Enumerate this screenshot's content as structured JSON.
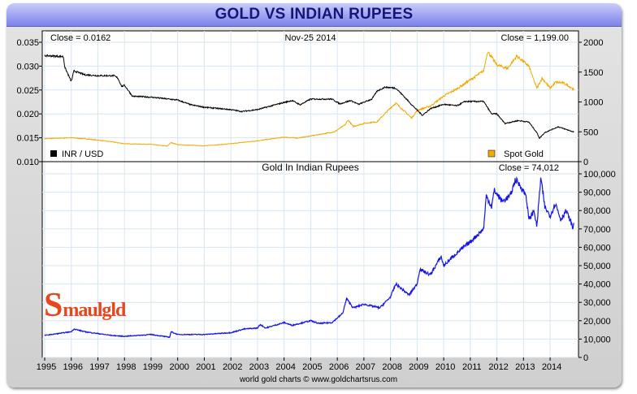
{
  "title": "GOLD VS INDIAN RUPEES",
  "footer": "world gold charts © www.goldchartsrus.com",
  "logo": {
    "first": "S",
    "rest": "maulgld"
  },
  "colors": {
    "inr": "#000000",
    "gold": "#f5a800",
    "inr_gold": "#1414f0",
    "grid": "#d6e6f2",
    "logo": "#e8461c"
  },
  "chart_data": [
    {
      "type": "line",
      "date_label": "Nov-25  2014",
      "left_close": "Close = 0.0162",
      "right_close": "Close = 1,199.00",
      "left_axis": {
        "range": [
          0.01,
          0.035
        ],
        "ticks": [
          "0.035",
          "0.030",
          "0.025",
          "0.020",
          "0.015",
          "0.010"
        ]
      },
      "right_axis": {
        "range": [
          0,
          2000
        ],
        "ticks": [
          "2000",
          "1500",
          "1000",
          "500",
          "0"
        ]
      },
      "grid": true,
      "legend": [
        {
          "name": "INR / USD",
          "placement": "bottom-left"
        },
        {
          "name": "Spot Gold",
          "placement": "bottom-right"
        }
      ],
      "series": [
        {
          "name": "INR / USD",
          "axis": "left",
          "points": [
            [
              1995.0,
              0.0322
            ],
            [
              1995.7,
              0.032
            ],
            [
              1995.76,
              0.0297
            ],
            [
              1996.0,
              0.0268
            ],
            [
              1996.1,
              0.029
            ],
            [
              1996.5,
              0.0282
            ],
            [
              1997.0,
              0.028
            ],
            [
              1997.6,
              0.028
            ],
            [
              1997.75,
              0.0275
            ],
            [
              1997.9,
              0.0257
            ],
            [
              1998.0,
              0.026
            ],
            [
              1998.3,
              0.0237
            ],
            [
              1999.0,
              0.0235
            ],
            [
              1999.5,
              0.0232
            ],
            [
              2000.0,
              0.0229
            ],
            [
              2000.5,
              0.0219
            ],
            [
              2001.0,
              0.0214
            ],
            [
              2002.0,
              0.0209
            ],
            [
              2002.4,
              0.0205
            ],
            [
              2003.0,
              0.0209
            ],
            [
              2004.0,
              0.0224
            ],
            [
              2004.3,
              0.0228
            ],
            [
              2004.6,
              0.0219
            ],
            [
              2005.0,
              0.0231
            ],
            [
              2005.8,
              0.0231
            ],
            [
              2006.1,
              0.0221
            ],
            [
              2006.5,
              0.0228
            ],
            [
              2006.8,
              0.022
            ],
            [
              2007.3,
              0.0231
            ],
            [
              2007.5,
              0.0248
            ],
            [
              2007.8,
              0.0256
            ],
            [
              2008.2,
              0.0254
            ],
            [
              2008.5,
              0.0237
            ],
            [
              2008.8,
              0.0219
            ],
            [
              2009.2,
              0.0197
            ],
            [
              2009.5,
              0.0211
            ],
            [
              2010.0,
              0.022
            ],
            [
              2010.5,
              0.0217
            ],
            [
              2010.8,
              0.0226
            ],
            [
              2011.5,
              0.0226
            ],
            [
              2011.8,
              0.02
            ],
            [
              2012.0,
              0.02
            ],
            [
              2012.3,
              0.018
            ],
            [
              2012.8,
              0.0186
            ],
            [
              2013.2,
              0.0183
            ],
            [
              2013.5,
              0.0161
            ],
            [
              2013.6,
              0.0149
            ],
            [
              2013.8,
              0.0161
            ],
            [
              2014.3,
              0.0173
            ],
            [
              2014.9,
              0.0162
            ]
          ]
        },
        {
          "name": "Spot Gold",
          "axis": "right",
          "points": [
            [
              1995.0,
              385
            ],
            [
              1996.0,
              400
            ],
            [
              1996.5,
              385
            ],
            [
              1997.0,
              360
            ],
            [
              1997.5,
              335
            ],
            [
              1998.0,
              300
            ],
            [
              1999.0,
              290
            ],
            [
              1999.6,
              260
            ],
            [
              1999.75,
              320
            ],
            [
              2000.0,
              285
            ],
            [
              2001.0,
              265
            ],
            [
              2002.0,
              300
            ],
            [
              2003.0,
              350
            ],
            [
              2004.0,
              410
            ],
            [
              2004.5,
              395
            ],
            [
              2005.0,
              430
            ],
            [
              2005.9,
              500
            ],
            [
              2006.3,
              620
            ],
            [
              2006.4,
              700
            ],
            [
              2006.6,
              590
            ],
            [
              2007.0,
              640
            ],
            [
              2007.5,
              670
            ],
            [
              2008.0,
              900
            ],
            [
              2008.2,
              980
            ],
            [
              2008.8,
              730
            ],
            [
              2009.0,
              860
            ],
            [
              2009.5,
              930
            ],
            [
              2010.0,
              1100
            ],
            [
              2010.5,
              1220
            ],
            [
              2011.0,
              1370
            ],
            [
              2011.5,
              1520
            ],
            [
              2011.65,
              1850
            ],
            [
              2012.0,
              1620
            ],
            [
              2012.4,
              1560
            ],
            [
              2012.75,
              1770
            ],
            [
              2013.2,
              1600
            ],
            [
              2013.4,
              1350
            ],
            [
              2013.5,
              1230
            ],
            [
              2013.7,
              1400
            ],
            [
              2014.0,
              1230
            ],
            [
              2014.2,
              1330
            ],
            [
              2014.5,
              1320
            ],
            [
              2014.8,
              1240
            ],
            [
              2014.9,
              1199
            ]
          ]
        }
      ]
    },
    {
      "type": "line",
      "title": "Gold In Indian Rupees",
      "close": "Close = 74,012",
      "right_axis": {
        "range": [
          0,
          100000
        ],
        "ticks": [
          "100,000",
          "90,000",
          "80,000",
          "70,000",
          "60,000",
          "50,000",
          "40,000",
          "30,000",
          "20,000",
          "10,000",
          "0"
        ]
      },
      "x_axis": {
        "range": [
          1995,
          2015
        ],
        "ticks": [
          "1995",
          "1996",
          "1997",
          "1998",
          "1999",
          "2000",
          "2001",
          "2002",
          "2003",
          "2004",
          "2005",
          "2006",
          "2007",
          "2008",
          "2009",
          "2010",
          "2011",
          "2012",
          "2013",
          "2014"
        ]
      },
      "grid": true,
      "series": [
        {
          "points": [
            [
              1995.0,
              12000
            ],
            [
              1996.0,
              14000
            ],
            [
              1996.1,
              15500
            ],
            [
              1996.5,
              14000
            ],
            [
              1997.5,
              12000
            ],
            [
              1998.0,
              11500
            ],
            [
              1999.0,
              12500
            ],
            [
              1999.7,
              11000
            ],
            [
              1999.75,
              14000
            ],
            [
              2000.0,
              12500
            ],
            [
              2001.0,
              12500
            ],
            [
              2002.0,
              13500
            ],
            [
              2002.5,
              15500
            ],
            [
              2003.0,
              16000
            ],
            [
              2003.1,
              18000
            ],
            [
              2003.3,
              16000
            ],
            [
              2004.0,
              19000
            ],
            [
              2004.3,
              17500
            ],
            [
              2005.0,
              20000
            ],
            [
              2005.3,
              18500
            ],
            [
              2005.8,
              19000
            ],
            [
              2006.2,
              24000
            ],
            [
              2006.35,
              32000
            ],
            [
              2006.6,
              27000
            ],
            [
              2007.0,
              29000
            ],
            [
              2007.6,
              27000
            ],
            [
              2008.0,
              33000
            ],
            [
              2008.2,
              40000
            ],
            [
              2008.7,
              34000
            ],
            [
              2009.0,
              40000
            ],
            [
              2009.1,
              48000
            ],
            [
              2009.5,
              45000
            ],
            [
              2009.9,
              55000
            ],
            [
              2010.0,
              50000
            ],
            [
              2010.5,
              57000
            ],
            [
              2011.0,
              63000
            ],
            [
              2011.5,
              70000
            ],
            [
              2011.6,
              88000
            ],
            [
              2011.8,
              82000
            ],
            [
              2011.9,
              91000
            ],
            [
              2012.2,
              85000
            ],
            [
              2012.5,
              88000
            ],
            [
              2012.7,
              97000
            ],
            [
              2012.9,
              93000
            ],
            [
              2013.1,
              88000
            ],
            [
              2013.2,
              75000
            ],
            [
              2013.4,
              80000
            ],
            [
              2013.5,
              71000
            ],
            [
              2013.65,
              98000
            ],
            [
              2013.8,
              82000
            ],
            [
              2014.0,
              77000
            ],
            [
              2014.2,
              84000
            ],
            [
              2014.4,
              75000
            ],
            [
              2014.6,
              80000
            ],
            [
              2014.8,
              73000
            ],
            [
              2014.85,
              70000
            ],
            [
              2014.9,
              74012
            ]
          ]
        }
      ]
    }
  ]
}
